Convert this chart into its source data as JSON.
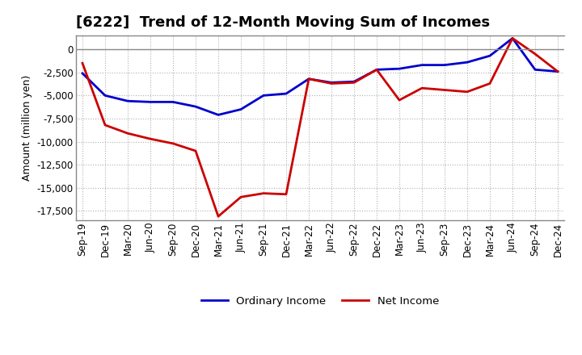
{
  "title": "[6222]  Trend of 12-Month Moving Sum of Incomes",
  "ylabel": "Amount (million yen)",
  "x_labels": [
    "Sep-19",
    "Dec-19",
    "Mar-20",
    "Jun-20",
    "Sep-20",
    "Dec-20",
    "Mar-21",
    "Jun-21",
    "Sep-21",
    "Dec-21",
    "Mar-22",
    "Jun-22",
    "Sep-22",
    "Dec-22",
    "Mar-23",
    "Jun-23",
    "Sep-23",
    "Dec-23",
    "Mar-24",
    "Jun-24",
    "Sep-24",
    "Dec-24"
  ],
  "ordinary_income": [
    -2600,
    -5000,
    -5600,
    -5700,
    -5700,
    -6200,
    -7100,
    -6500,
    -5000,
    -4800,
    -3200,
    -3600,
    -3500,
    -2200,
    -2100,
    -1700,
    -1700,
    -1400,
    -700,
    1200,
    -2200,
    -2400
  ],
  "net_income": [
    -1500,
    -8200,
    -9100,
    -9700,
    -10200,
    -11000,
    -18100,
    -16000,
    -15600,
    -15700,
    -3200,
    -3700,
    -3600,
    -2200,
    -5500,
    -4200,
    -4400,
    -4600,
    -3700,
    1200,
    -500,
    -2400
  ],
  "ordinary_color": "#0000cc",
  "net_color": "#cc0000",
  "ylim_min": -18500,
  "ylim_max": 1500,
  "yticks": [
    0,
    -2500,
    -5000,
    -7500,
    -10000,
    -12500,
    -15000,
    -17500
  ],
  "background_color": "#ffffff",
  "grid_color": "#b0b0b0",
  "line_width": 2.0,
  "legend_ordinary": "Ordinary Income",
  "legend_net": "Net Income",
  "title_fontsize": 13,
  "tick_fontsize": 8.5,
  "ylabel_fontsize": 9
}
